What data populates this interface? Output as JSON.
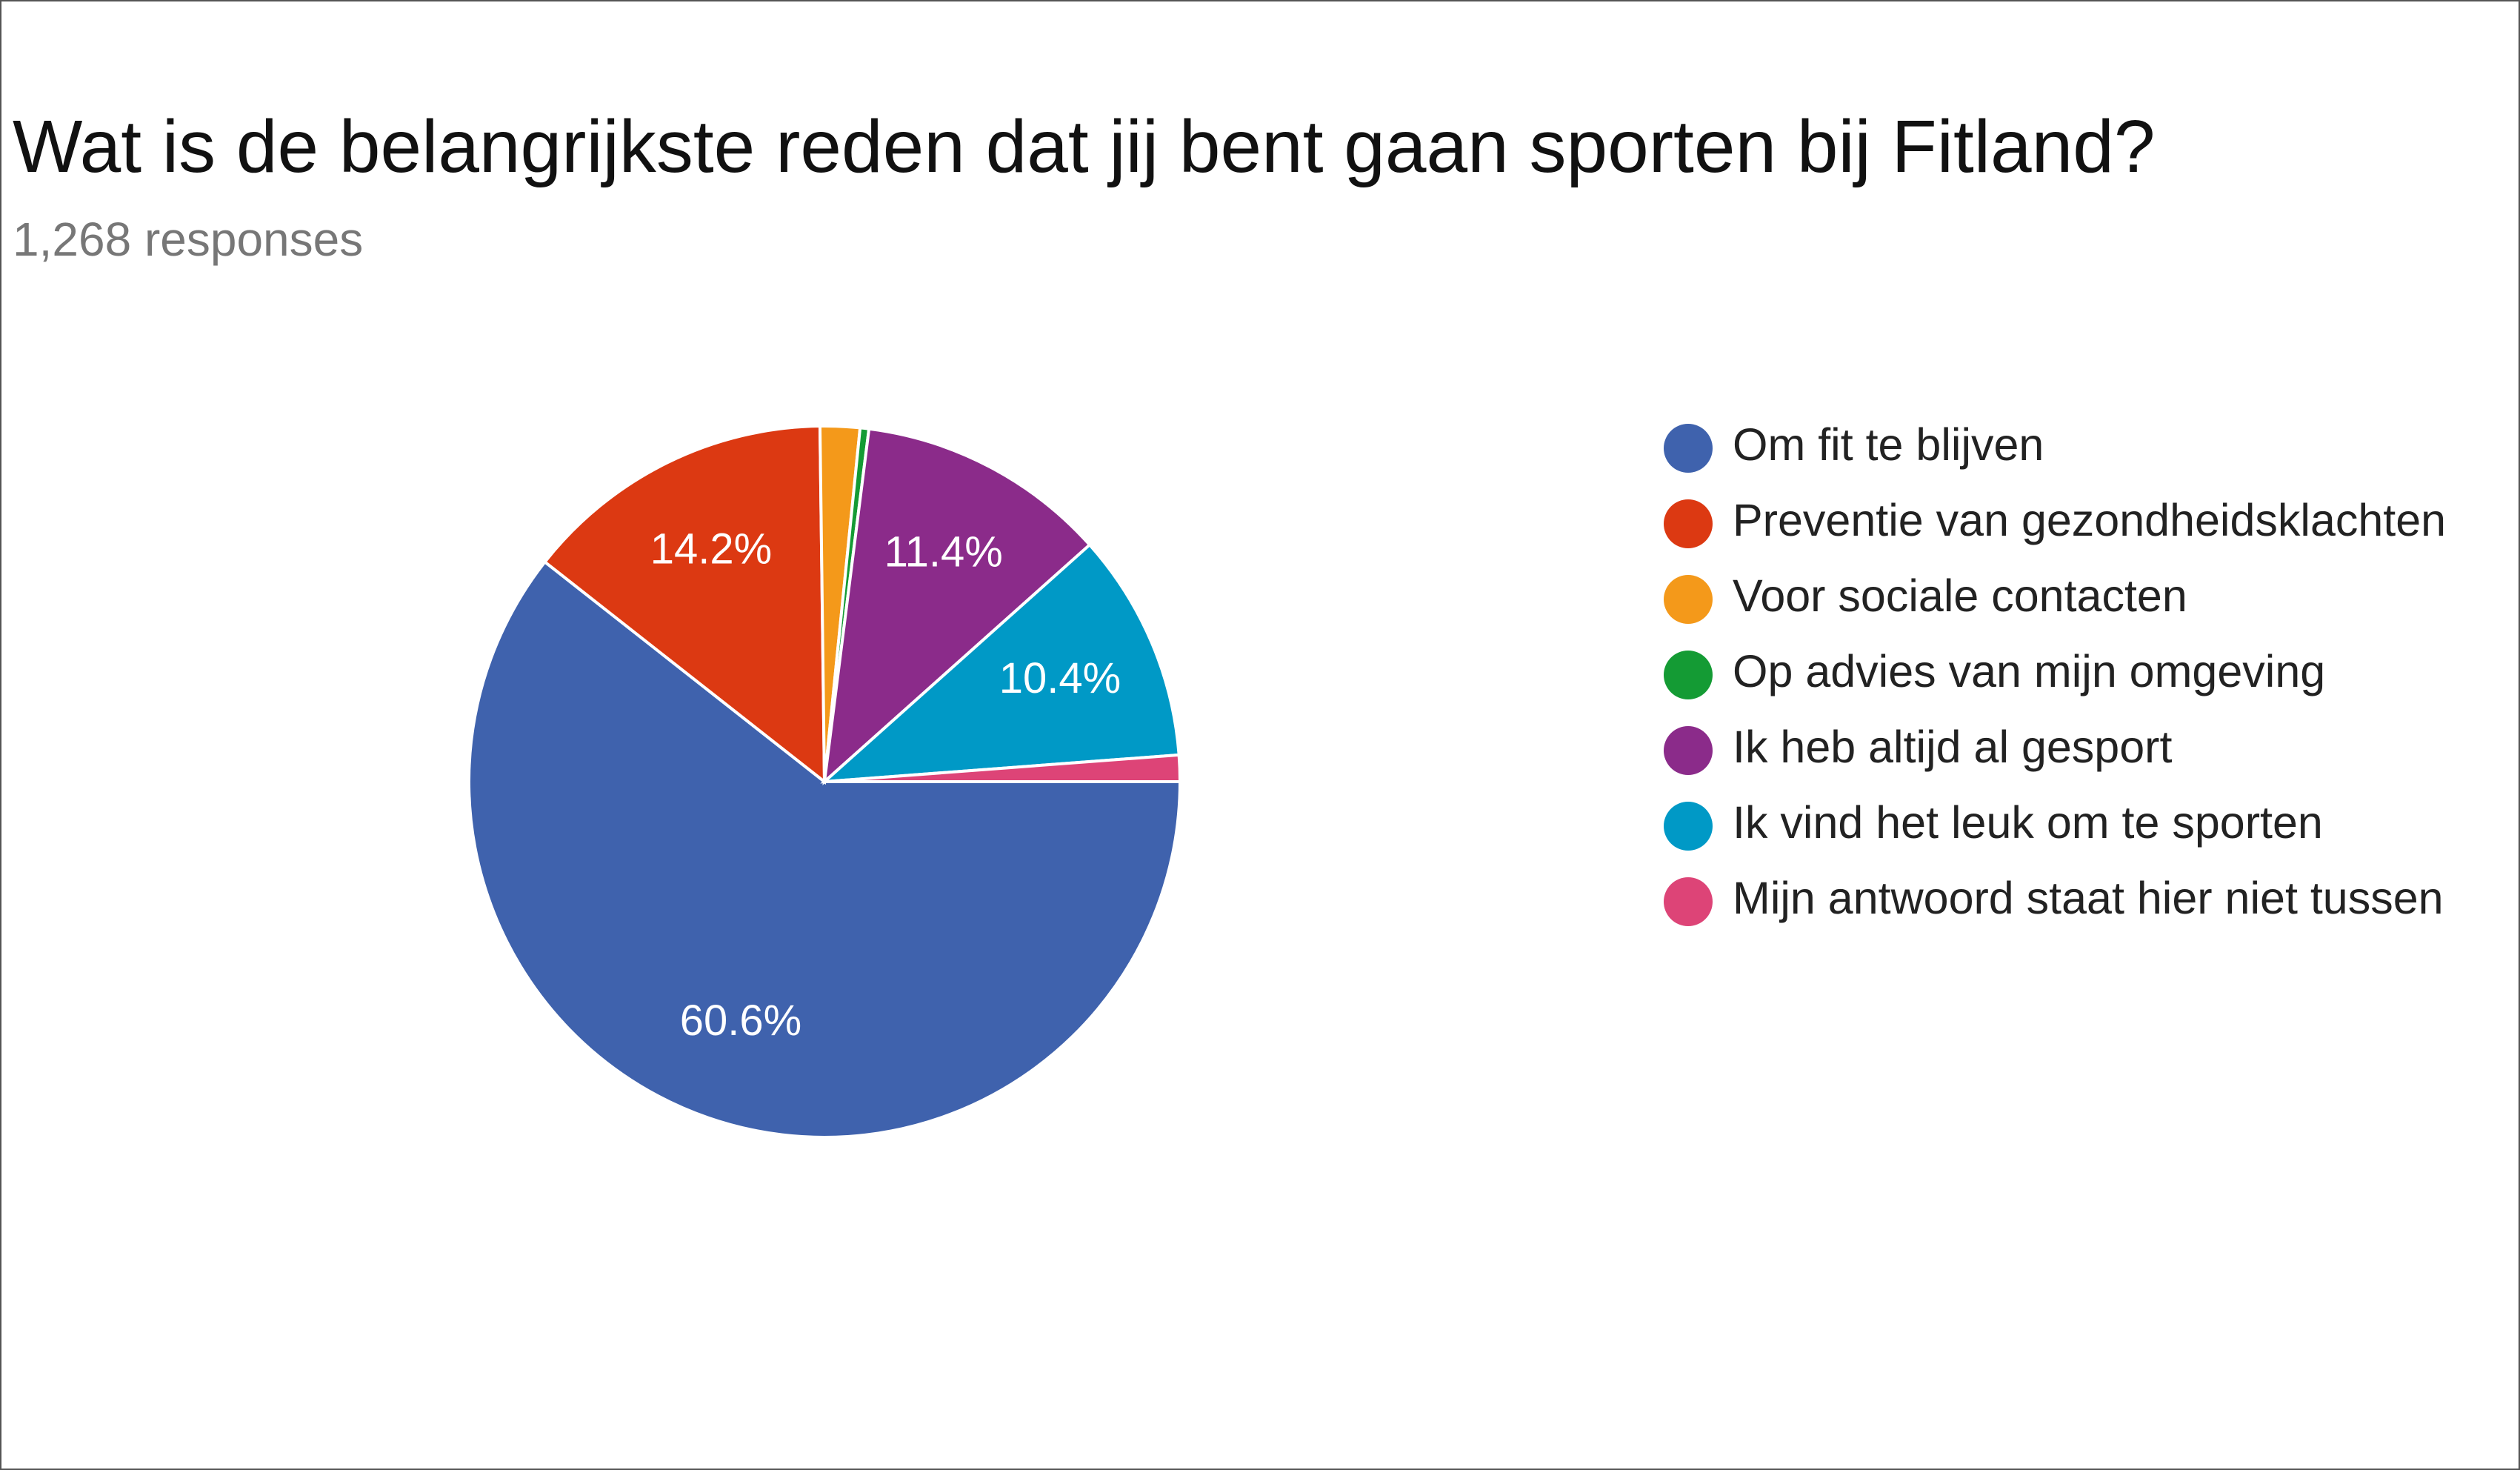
{
  "chart_data": {
    "type": "pie",
    "title": "Wat is de belangrijkste reden dat jij bent gaan sporten bij Fitland?",
    "subtitle": "1,268 responses",
    "categories": [
      "Om fit te blijven",
      "Preventie van gezondheidsklachten",
      "Voor sociale contacten",
      "Op advies van mijn omgeving",
      "Ik heb altijd al gesport",
      "Ik vind het leuk om te sporten",
      "Mijn antwoord staat hier niet tussen"
    ],
    "values": [
      60.6,
      14.2,
      1.8,
      0.4,
      11.4,
      10.4,
      1.2
    ],
    "value_labels": [
      "60.6%",
      "14.2%",
      null,
      null,
      "11.4%",
      "10.4%",
      null
    ],
    "colors": [
      "#3f62ad",
      "#dc3912",
      "#f4991a",
      "#149b34",
      "#8b2b8a",
      "#0099c6",
      "#dd4477"
    ],
    "legend": "right"
  }
}
